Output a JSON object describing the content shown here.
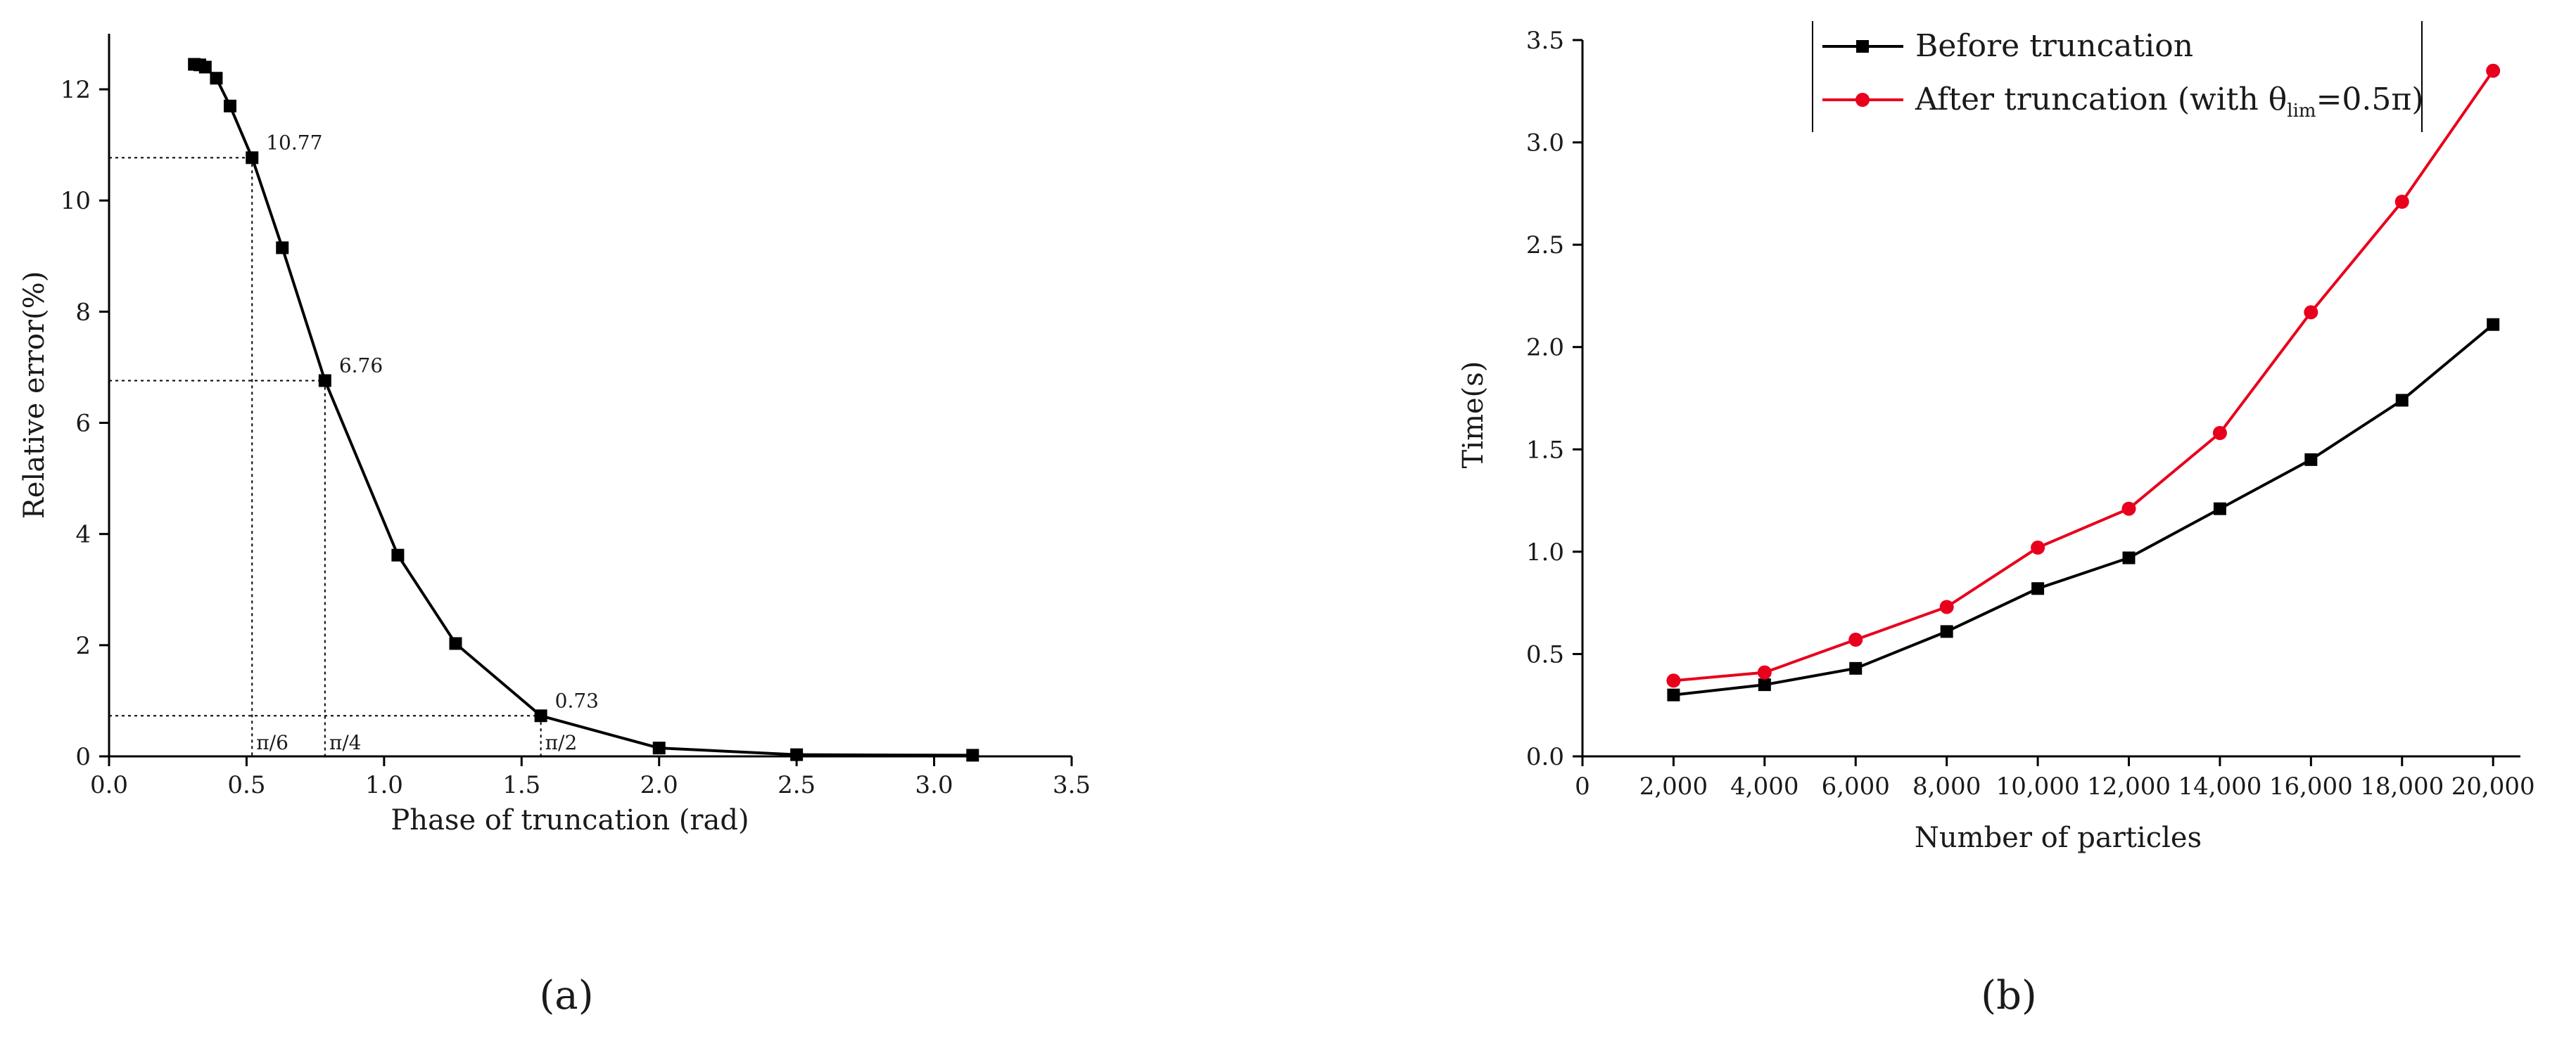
{
  "chart_data": [
    {
      "type": "line",
      "panel_label": "(a)",
      "title": "",
      "xlabel": "Phase of truncation (rad)",
      "ylabel": "Relative error(%)",
      "xlim": [
        0.0,
        3.5
      ],
      "ylim": [
        0,
        13
      ],
      "xticks": [
        "0.0",
        "0.5",
        "1.0",
        "1.5",
        "2.0",
        "2.5",
        "3.0",
        "3.5"
      ],
      "yticks": [
        "0",
        "2",
        "4",
        "6",
        "8",
        "10",
        "12"
      ],
      "grid": false,
      "series": [
        {
          "color": "#000000",
          "marker": "square",
          "x": [
            0.31,
            0.33,
            0.35,
            0.39,
            0.44,
            0.52,
            0.63,
            0.785,
            1.05,
            1.26,
            1.57,
            2.0,
            2.5,
            3.14
          ],
          "y": [
            12.45,
            12.44,
            12.4,
            12.2,
            11.7,
            10.77,
            9.15,
            6.76,
            3.62,
            2.03,
            0.73,
            0.15,
            0.03,
            0.02
          ]
        }
      ],
      "annotations": [
        {
          "x": 0.52,
          "y": 10.77,
          "text": "10.77"
        },
        {
          "x": 0.785,
          "y": 6.76,
          "text": "6.76"
        },
        {
          "x": 1.57,
          "y": 0.73,
          "text": "0.73"
        }
      ],
      "guide_labels": [
        {
          "x": 0.52,
          "text": "π/6"
        },
        {
          "x": 0.785,
          "text": "π/4"
        },
        {
          "x": 1.57,
          "text": "π/2"
        }
      ]
    },
    {
      "type": "line",
      "panel_label": "(b)",
      "title": "",
      "xlabel": "Number of particles",
      "ylabel": "Time(s)",
      "xlim": [
        0,
        20000
      ],
      "ylim": [
        0.0,
        3.5
      ],
      "xticks": [
        "0",
        "2,000",
        "4,000",
        "6,000",
        "8,000",
        "10,000",
        "12,000",
        "14,000",
        "16,000",
        "18,000",
        "20,000"
      ],
      "yticks": [
        "0.0",
        "0.5",
        "1.0",
        "1.5",
        "2.0",
        "2.5",
        "3.0",
        "3.5"
      ],
      "grid": false,
      "legend_position": "top-center",
      "x": [
        2000,
        4000,
        6000,
        8000,
        10000,
        12000,
        14000,
        16000,
        18000,
        20000
      ],
      "series": [
        {
          "name": "Before truncation",
          "color": "#000000",
          "marker": "square",
          "values": [
            0.3,
            0.35,
            0.43,
            0.61,
            0.82,
            0.97,
            1.21,
            1.45,
            1.74,
            2.11
          ]
        },
        {
          "name": "After truncation (with θlim=0.5π)",
          "color": "#e8001c",
          "marker": "circle",
          "values": [
            0.37,
            0.41,
            0.57,
            0.73,
            1.02,
            1.21,
            1.58,
            2.17,
            2.71,
            3.35
          ]
        }
      ],
      "legend": {
        "before": "Before truncation",
        "after_prefix": "After truncation (with θ",
        "after_sub": "lim",
        "after_suffix": "=0.5π)"
      }
    }
  ]
}
